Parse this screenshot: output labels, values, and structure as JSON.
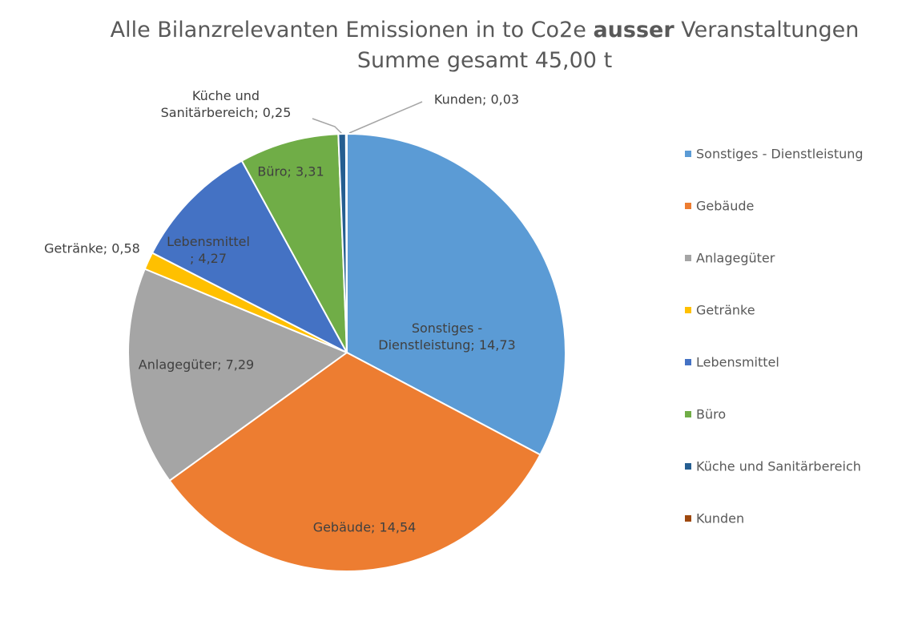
{
  "chart_data": {
    "type": "pie",
    "title": [
      "Alle Bilanzrelevanten Emissionen in to Co2e",
      "ausser",
      "Veranstaltungen"
    ],
    "subtitle": "Summe gesamt 45,00 t",
    "categories": [
      "Sonstiges - Dienstleistung",
      "Gebäude",
      "Anlagegüter",
      "Getränke",
      "Lebensmittel",
      "Büro",
      "Küche und Sanitärbereich",
      "Kunden"
    ],
    "values": [
      14.73,
      14.54,
      7.29,
      0.58,
      4.27,
      3.31,
      0.25,
      0.03
    ],
    "value_labels": [
      "Sonstiges - Dienstleistung; 14,73",
      "Gebäude; 14,54",
      "Anlagegüter; 7,29",
      "Getränke; 0,58",
      "Lebensmittel ; 4,27",
      "Büro; 3,31",
      "Küche und Sanitärbereich; 0,25",
      "Kunden; 0,03"
    ],
    "colors": [
      "#5b9bd5",
      "#ed7d31",
      "#a5a5a5",
      "#ffc000",
      "#4472c4",
      "#70ad47",
      "#255e91",
      "#9e480e"
    ],
    "legend": "right"
  }
}
